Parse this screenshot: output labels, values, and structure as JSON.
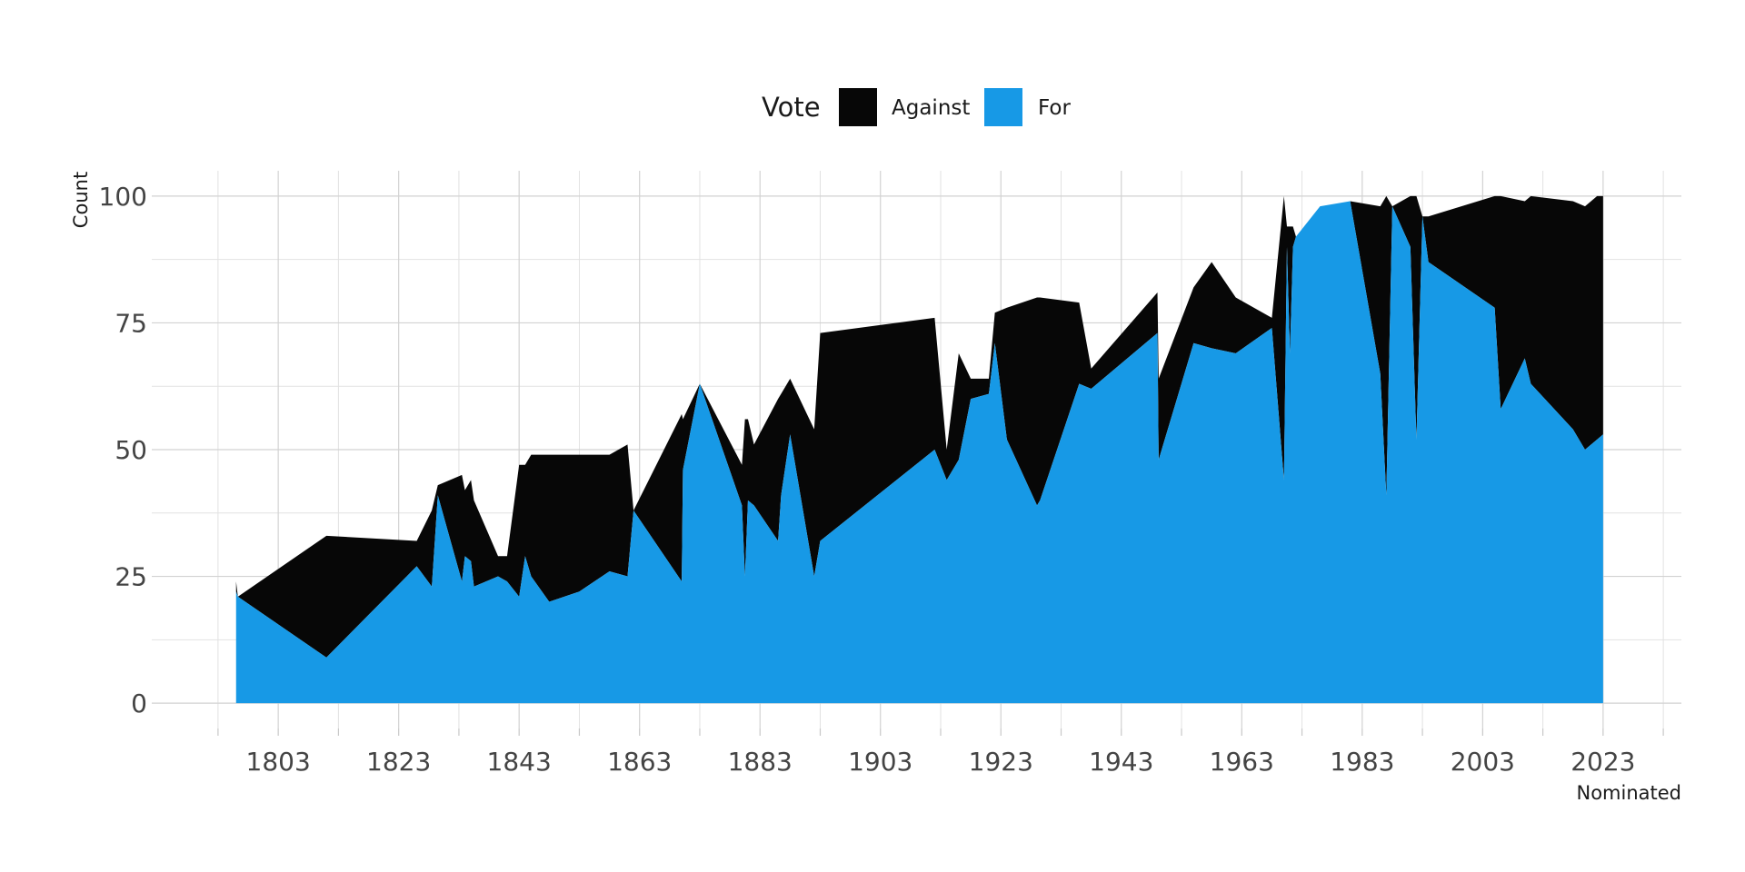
{
  "chart_data": {
    "type": "area",
    "stacked": true,
    "xlabel": "Nominated",
    "ylabel": "Count",
    "xlim": [
      1782,
      2036
    ],
    "ylim": [
      -5,
      105
    ],
    "x_ticks": [
      1803,
      1823,
      1843,
      1863,
      1883,
      1903,
      1923,
      1943,
      1963,
      1983,
      2003,
      2023
    ],
    "x_tick_labels": [
      "1803",
      "1823",
      "1843",
      "1863",
      "1883",
      "1903",
      "1923",
      "1943",
      "1963",
      "1983",
      "2003",
      "2023"
    ],
    "x_minor_ticks": [
      1793,
      1813,
      1833,
      1853,
      1873,
      1893,
      1913,
      1933,
      1953,
      1973,
      1993,
      2013,
      2033
    ],
    "y_ticks": [
      0,
      25,
      50,
      75,
      100
    ],
    "y_tick_labels": [
      "0",
      "25",
      "50",
      "75",
      "100"
    ],
    "y_minor_ticks": [
      12.5,
      37.5,
      62.5,
      87.5
    ],
    "grid": true,
    "legend": {
      "title": "Vote",
      "position": "top",
      "entries": [
        {
          "label": "Against",
          "color": "#070707"
        },
        {
          "label": "For",
          "color": "#1799e6"
        }
      ]
    },
    "series": [
      {
        "name": "For",
        "color": "#1799e6",
        "x": [
          1796,
          1796.3,
          1811,
          1826,
          1828.5,
          1829.5,
          1833.5,
          1834,
          1835,
          1835.5,
          1839.5,
          1841,
          1843,
          1844,
          1845,
          1848,
          1853,
          1858,
          1861,
          1862,
          1870,
          1870.2,
          1873,
          1880,
          1880.5,
          1881,
          1882,
          1886,
          1886.5,
          1888,
          1892,
          1893,
          1912,
          1914,
          1916,
          1918,
          1921,
          1922,
          1924,
          1929,
          1929.5,
          1936,
          1938,
          1949,
          1949.2,
          1955,
          1958,
          1962,
          1968,
          1970,
          1970.5,
          1971,
          1971.5,
          1972,
          1976,
          1981,
          1986,
          1987,
          1988,
          1991,
          1992,
          1993,
          1994,
          2005,
          2006,
          2010,
          2011,
          2018,
          2020,
          2022,
          2023
        ],
        "values": [
          22,
          21,
          9,
          27,
          23,
          41,
          24,
          29,
          28,
          23,
          25,
          24,
          21,
          29,
          25,
          20,
          22,
          26,
          25,
          38,
          24,
          46,
          63,
          39,
          25,
          40,
          39,
          32,
          41,
          53,
          25,
          32,
          50,
          44,
          48,
          60,
          61,
          71,
          52,
          39,
          40,
          63,
          62,
          73,
          48,
          71,
          70,
          69,
          74,
          44,
          90,
          69,
          90,
          92,
          98,
          99,
          65,
          41,
          98,
          90,
          52,
          96,
          87,
          78,
          58,
          68,
          63,
          54,
          50,
          52,
          53
        ]
      },
      {
        "name": "Against",
        "color": "#070707",
        "x": [
          1796,
          1796.3,
          1811,
          1826,
          1828.5,
          1829.5,
          1833.5,
          1834,
          1835,
          1835.5,
          1839.5,
          1841,
          1843,
          1844,
          1845,
          1848,
          1853,
          1858,
          1861,
          1862,
          1870,
          1870.2,
          1873,
          1880,
          1880.5,
          1881,
          1882,
          1886,
          1886.5,
          1888,
          1892,
          1893,
          1912,
          1914,
          1916,
          1918,
          1921,
          1922,
          1924,
          1929,
          1929.5,
          1936,
          1938,
          1949,
          1949.2,
          1955,
          1958,
          1962,
          1968,
          1970,
          1970.5,
          1971,
          1971.5,
          1972,
          1976,
          1981,
          1986,
          1987,
          1988,
          1991,
          1992,
          1993,
          1994,
          2005,
          2006,
          2010,
          2011,
          2018,
          2020,
          2022,
          2023
        ],
        "values": [
          2,
          0,
          24,
          5,
          15,
          2,
          21,
          13,
          16,
          17,
          4,
          5,
          26,
          18,
          24,
          29,
          27,
          23,
          26,
          0,
          33,
          10,
          0,
          8,
          31,
          16,
          12,
          28,
          20,
          11,
          29,
          41,
          26,
          6,
          21,
          4,
          3,
          6,
          26,
          41,
          40,
          16,
          4,
          8,
          16,
          11,
          17,
          11,
          2,
          56,
          4,
          25,
          4,
          0,
          0,
          0,
          33,
          59,
          0,
          10,
          48,
          0,
          9,
          22,
          42,
          31,
          37,
          45,
          48,
          48,
          47
        ]
      }
    ]
  }
}
